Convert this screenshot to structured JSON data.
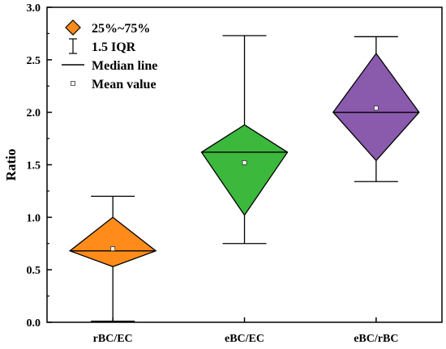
{
  "chart_data": {
    "type": "box",
    "ylabel": "Ratio",
    "xlabel": "",
    "ylim": [
      0.0,
      3.0
    ],
    "yticks": [
      "0.0",
      "0.5",
      "1.0",
      "1.5",
      "2.0",
      "2.5",
      "3.0"
    ],
    "categories": [
      "rBC/EC",
      "eBC/EC",
      "eBC/rBC"
    ],
    "boxes": [
      {
        "category": "rBC/EC",
        "whisker_low": 0.01,
        "q1": 0.53,
        "median": 0.68,
        "q3": 1.0,
        "whisker_high": 1.2,
        "mean": 0.7,
        "color": "#FF8C1A"
      },
      {
        "category": "eBC/EC",
        "whisker_low": 0.75,
        "q1": 1.02,
        "median": 1.62,
        "q3": 1.88,
        "whisker_high": 2.73,
        "mean": 1.52,
        "color": "#3CB83C"
      },
      {
        "category": "eBC/rBC",
        "whisker_low": 1.34,
        "q1": 1.54,
        "median": 2.0,
        "q3": 2.56,
        "whisker_high": 2.72,
        "mean": 2.04,
        "color": "#8A5AAD"
      }
    ],
    "legend": {
      "position": "top-left",
      "items": [
        {
          "label": "25%~75%",
          "symbol": "diamond"
        },
        {
          "label": "1.5 IQR",
          "symbol": "whisker"
        },
        {
          "label": "Median line",
          "symbol": "line"
        },
        {
          "label": "Mean value",
          "symbol": "square"
        }
      ]
    },
    "grid": false
  }
}
